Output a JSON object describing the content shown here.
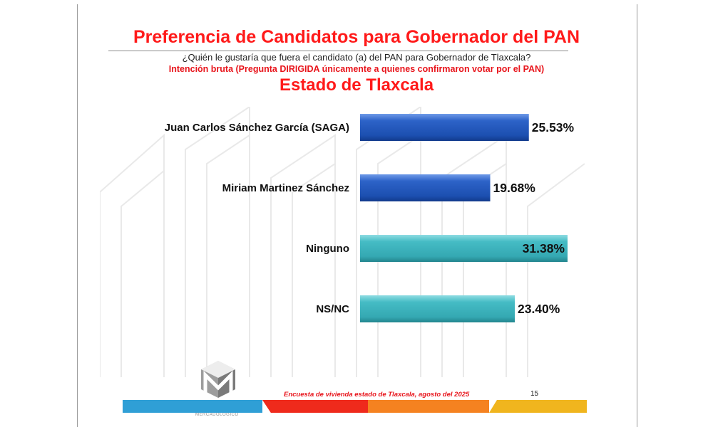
{
  "header": {
    "title": "Preferencia de Candidatos para Gobernador del PAN",
    "question": "¿Quién le gustaría que fuera el candidato (a) del PAN para Gobernador de Tlaxcala?",
    "note": "Intención bruta (Pregunta DIRIGIDA únicamente a quienes confirmaron votar por el PAN)",
    "region": "Estado de Tlaxcala"
  },
  "chart_data": {
    "type": "bar",
    "orientation": "horizontal",
    "categories": [
      "Juan Carlos Sánchez García (SAGA)",
      "Miriam Martinez Sánchez",
      "Ninguno",
      "NS/NC"
    ],
    "values": [
      25.53,
      19.68,
      31.38,
      23.4
    ],
    "value_labels": [
      "25.53%",
      "19.68%",
      "31.38%",
      "23.40%"
    ],
    "colors": [
      "#1f56b8",
      "#1f56b8",
      "#3db4bd",
      "#3db4bd"
    ],
    "xlim": [
      0,
      31.38
    ],
    "grid": false,
    "legend": "none"
  },
  "footer": {
    "survey": "Encuesta de vivienda estado de Tlaxcala, agosto del 2025",
    "page": "15",
    "logo_caption": "MERCADOLOGICO",
    "band_colors": [
      "#2f9fd6",
      "#ef2a1c",
      "#f58220",
      "#f0b51e"
    ]
  }
}
